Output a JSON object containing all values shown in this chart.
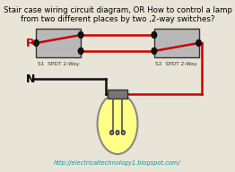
{
  "title_line1": "Stair case wiring circuit diagram, OR How to control a lamp",
  "title_line2": "from two different places by two ,2-way switches?",
  "title_fontsize": 6.2,
  "bg_color": "#e8e4d8",
  "switch1_label": "S1  SPDT 2-Way",
  "switch2_label": "S2  SPDT 2-Way",
  "P_label": "P",
  "N_label": "N",
  "url_text": "http://electricaltechnology1.blogspot.com/",
  "url_color": "#009999",
  "wire_red": "#cc0000",
  "wire_black": "#111111",
  "switch_bg": "#b8b8b8",
  "bulb_color": "#ffff88",
  "bulb_globe_color": "#ffff66"
}
